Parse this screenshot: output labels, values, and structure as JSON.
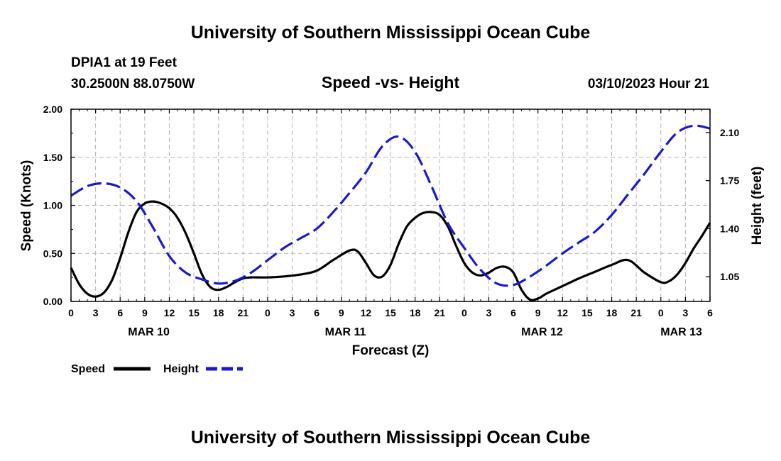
{
  "header": {
    "title": "University of Southern Mississippi Ocean Cube",
    "station": "DPIA1 at 19 Feet",
    "location": "30.2500N  88.0750W",
    "chart_title": "Speed -vs- Height",
    "datetime": "03/10/2023 Hour 21"
  },
  "footer": {
    "title": "University of Southern Mississippi Ocean Cube"
  },
  "colors": {
    "speed": "#000000",
    "height": "#1a1acc",
    "grid": "#b4b4b4"
  },
  "chart_data": {
    "type": "line",
    "title": "Speed -vs- Height",
    "xlabel": "Forecast (Z)",
    "ylabel": "Speed (Knots)",
    "y2label": "Height (feet)",
    "xlim": [
      0,
      78
    ],
    "ylim": [
      0,
      2.0
    ],
    "y2lim": [
      0.87,
      2.27
    ],
    "x_ticks": [
      0,
      3,
      6,
      9,
      12,
      15,
      18,
      21,
      24,
      27,
      30,
      33,
      36,
      39,
      42,
      45,
      48,
      51,
      54,
      57,
      60,
      63,
      66,
      69,
      72,
      75,
      78
    ],
    "x_tick_labels": [
      "0",
      "3",
      "6",
      "9",
      "12",
      "15",
      "18",
      "21",
      "0",
      "3",
      "6",
      "9",
      "12",
      "15",
      "18",
      "21",
      "0",
      "3",
      "6",
      "9",
      "12",
      "15",
      "18",
      "21",
      "0",
      "3",
      "6"
    ],
    "y_ticks": [
      0,
      0.5,
      1.0,
      1.5,
      2.0
    ],
    "y_tick_labels": [
      "0.00",
      "0.50",
      "1.00",
      "1.50",
      "2.00"
    ],
    "y2_ticks": [
      1.05,
      1.4,
      1.75,
      2.1
    ],
    "y2_tick_labels": [
      "1.05",
      "1.40",
      "1.75",
      "2.10"
    ],
    "day_labels": [
      {
        "x": 9.5,
        "label": "MAR 10"
      },
      {
        "x": 33.5,
        "label": "MAR 11"
      },
      {
        "x": 57.5,
        "label": "MAR 12"
      },
      {
        "x": 74.5,
        "label": "MAR 13"
      }
    ],
    "legend": [
      {
        "name": "Speed",
        "style": "solid"
      },
      {
        "name": "Height",
        "style": "dashed"
      }
    ],
    "series": [
      {
        "name": "Speed",
        "axis": "left",
        "x": [
          0,
          1,
          2,
          3,
          4,
          5,
          6,
          7,
          8,
          9,
          10,
          11,
          12,
          13,
          14,
          15,
          16,
          17,
          18,
          19,
          20,
          21,
          22,
          24,
          26,
          28,
          30,
          32,
          34,
          35,
          36,
          37,
          38,
          39,
          40,
          41,
          42,
          43,
          44,
          45,
          46,
          47,
          48,
          49,
          50,
          51,
          52,
          53,
          54,
          55,
          56,
          57,
          58,
          59,
          60,
          61,
          62,
          64,
          66,
          68,
          70,
          72,
          73,
          74,
          75,
          76,
          77,
          78
        ],
        "values": [
          0.35,
          0.18,
          0.08,
          0.05,
          0.09,
          0.22,
          0.45,
          0.72,
          0.93,
          1.02,
          1.04,
          1.02,
          0.97,
          0.87,
          0.71,
          0.5,
          0.28,
          0.15,
          0.12,
          0.15,
          0.2,
          0.24,
          0.25,
          0.25,
          0.26,
          0.28,
          0.32,
          0.43,
          0.53,
          0.52,
          0.4,
          0.27,
          0.26,
          0.38,
          0.6,
          0.78,
          0.87,
          0.92,
          0.93,
          0.9,
          0.78,
          0.58,
          0.4,
          0.3,
          0.27,
          0.3,
          0.35,
          0.36,
          0.3,
          0.12,
          0.02,
          0.03,
          0.08,
          0.12,
          0.16,
          0.2,
          0.24,
          0.31,
          0.38,
          0.43,
          0.3,
          0.2,
          0.21,
          0.28,
          0.4,
          0.55,
          0.68,
          0.82
        ]
      },
      {
        "name": "Height",
        "axis": "right",
        "x": [
          0,
          2,
          4,
          6,
          8,
          10,
          12,
          14,
          16,
          18,
          20,
          22,
          24,
          26,
          28,
          30,
          32,
          34,
          36,
          38,
          40,
          42,
          44,
          46,
          48,
          50,
          52,
          54,
          56,
          58,
          60,
          62,
          64,
          66,
          68,
          70,
          72,
          74,
          76,
          78
        ],
        "values": [
          1.64,
          1.71,
          1.73,
          1.7,
          1.6,
          1.41,
          1.2,
          1.08,
          1.03,
          1.0,
          1.02,
          1.08,
          1.17,
          1.26,
          1.33,
          1.4,
          1.52,
          1.66,
          1.81,
          2.0,
          2.07,
          1.96,
          1.71,
          1.44,
          1.26,
          1.1,
          1.0,
          0.99,
          1.05,
          1.13,
          1.22,
          1.3,
          1.38,
          1.5,
          1.65,
          1.8,
          1.96,
          2.1,
          2.15,
          2.13
        ]
      }
    ]
  }
}
